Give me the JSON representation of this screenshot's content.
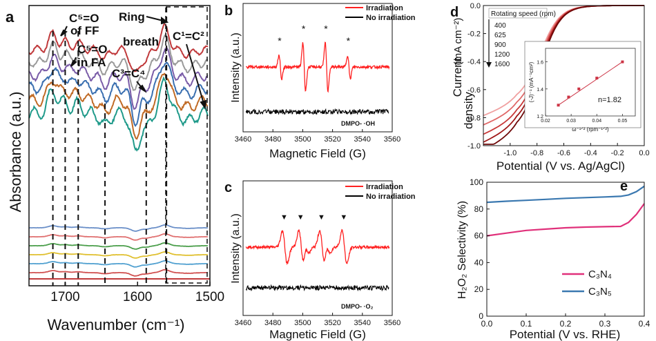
{
  "panels": {
    "a": {
      "letter": "a"
    },
    "b": {
      "letter": "b"
    },
    "c": {
      "letter": "c"
    },
    "d": {
      "letter": "d"
    },
    "e": {
      "letter": "e"
    }
  },
  "chart_data": [
    {
      "id": "a",
      "type": "line",
      "title": "",
      "xlabel": "Wavenumber (cm⁻¹)",
      "ylabel": "Absorbance (a.u.)",
      "xlim": [
        1750,
        1500
      ],
      "xticks": [
        "1700",
        "1600",
        "1500"
      ],
      "annotations": {
        "c5o_ff_1": "C⁵=O",
        "c5o_ff_2": "of FF",
        "c5o_fa_1": "C⁵=O",
        "c5o_fa_2": "in FA",
        "c3c4": "C³=C⁴",
        "ring_1": "Ring",
        "ring_2": "breath",
        "c1c2": "C¹=C²"
      },
      "dashed_lines_x": [
        1717,
        1700,
        1682,
        1645,
        1588,
        1560
      ],
      "series_colors": [
        "#c0393b",
        "#9a9a9a",
        "#7a5ca8",
        "#3a6fb0",
        "#c06a25",
        "#1f9a8a",
        "#6a8fc8",
        "#e07070",
        "#4a9e4a",
        "#e0c030",
        "#50a0d0",
        "#d05050"
      ],
      "upper_series_count": 6,
      "lower_series_count": 6
    },
    {
      "id": "b",
      "type": "line",
      "title": "",
      "xlabel": "Magnetic Field (G)",
      "ylabel": "Intensity (a.u.)",
      "xlim": [
        3460,
        3560
      ],
      "xticks": [
        "3460",
        "3480",
        "3500",
        "3520",
        "3540",
        "3560"
      ],
      "series": [
        {
          "name": "Irradiation",
          "color": "#ff2020",
          "peaks_G": [
            3485,
            3501,
            3516,
            3531
          ],
          "relative_amplitude": [
            1,
            2,
            2,
            1
          ]
        },
        {
          "name": "No irradiation",
          "color": "#000000"
        }
      ],
      "peak_marker": "*",
      "annotation": "DMPO- ·OH"
    },
    {
      "id": "c",
      "type": "line",
      "title": "",
      "xlabel": "Magnetic Field (G)",
      "ylabel": "Intensity (a.u.)",
      "xlim": [
        3460,
        3560
      ],
      "xticks": [
        "3460",
        "3480",
        "3500",
        "3520",
        "3540",
        "3560"
      ],
      "series": [
        {
          "name": "Irradiation",
          "color": "#ff2020",
          "peaks_G": [
            3488,
            3499,
            3513,
            3528
          ]
        },
        {
          "name": "No irradiation",
          "color": "#000000"
        }
      ],
      "peak_marker": "▼",
      "annotation": "DMPO- ·O₂"
    },
    {
      "id": "d",
      "type": "line",
      "title": "",
      "xlabel": "Potential (V vs. Ag/AgCl)",
      "ylabel_1": "Current",
      "ylabel_2": "density",
      "ylabel_3": "(mA cm⁻²)",
      "xlim": [
        -1.2,
        0.0
      ],
      "ylim": [
        -1.0,
        0.0
      ],
      "xticks": [
        "-1.0",
        "-0.8",
        "-0.6",
        "-0.4",
        "-0.2",
        "0.0"
      ],
      "yticks": [
        "0.0",
        "-0.2",
        "-0.4",
        "-0.6",
        "-0.8",
        "-1.0"
      ],
      "legend_title": "Rotating speed (rpm)",
      "series": [
        {
          "name": "400",
          "color": "#f0a0a0",
          "limit": -0.7
        },
        {
          "name": "625",
          "color": "#e06868",
          "limit": -0.76
        },
        {
          "name": "900",
          "color": "#c83838",
          "limit": -0.82
        },
        {
          "name": "1200",
          "color": "#a01818",
          "limit": -0.87
        },
        {
          "name": "1600",
          "color": "#6e0808",
          "limit": -0.92
        }
      ],
      "inset": {
        "xlabel": "ω⁻¹ᐟ² (rpm⁻¹ᐟ²)",
        "ylabel": "(-J)⁻¹ (mA⁻¹cm²)",
        "xlim": [
          0.02,
          0.055
        ],
        "ylim": [
          1.2,
          1.7
        ],
        "xticks": [
          "0.02",
          "0.03",
          "0.04",
          "0.05"
        ],
        "yticks": [
          "1.6",
          "1.4",
          "1.2"
        ],
        "x": [
          0.025,
          0.029,
          0.033,
          0.04,
          0.05
        ],
        "y": [
          1.28,
          1.34,
          1.4,
          1.48,
          1.6
        ],
        "label": "n=1.82"
      }
    },
    {
      "id": "e",
      "type": "line",
      "title": "",
      "xlabel": "Potential (V vs. RHE)",
      "ylabel": "H₂O₂ Selectivity (%)",
      "xlim": [
        0.0,
        0.4
      ],
      "ylim": [
        0,
        100
      ],
      "xticks": [
        "0.0",
        "0.1",
        "0.2",
        "0.3",
        "0.4"
      ],
      "yticks": [
        "0",
        "20",
        "40",
        "60",
        "80",
        "100"
      ],
      "series": [
        {
          "name": "C₃N₄",
          "color": "#e0307a",
          "x": [
            0.0,
            0.05,
            0.1,
            0.15,
            0.2,
            0.25,
            0.3,
            0.34,
            0.36,
            0.38,
            0.4
          ],
          "y": [
            60,
            62,
            64,
            65,
            66,
            66.5,
            66.8,
            67,
            70,
            76,
            84
          ]
        },
        {
          "name": "C₃N₅",
          "color": "#3a78b0",
          "x": [
            0.0,
            0.05,
            0.1,
            0.15,
            0.2,
            0.25,
            0.3,
            0.34,
            0.36,
            0.38,
            0.4
          ],
          "y": [
            85,
            85.8,
            86.5,
            87.2,
            88,
            88.5,
            89,
            89.5,
            90.5,
            93,
            97
          ]
        }
      ]
    }
  ]
}
